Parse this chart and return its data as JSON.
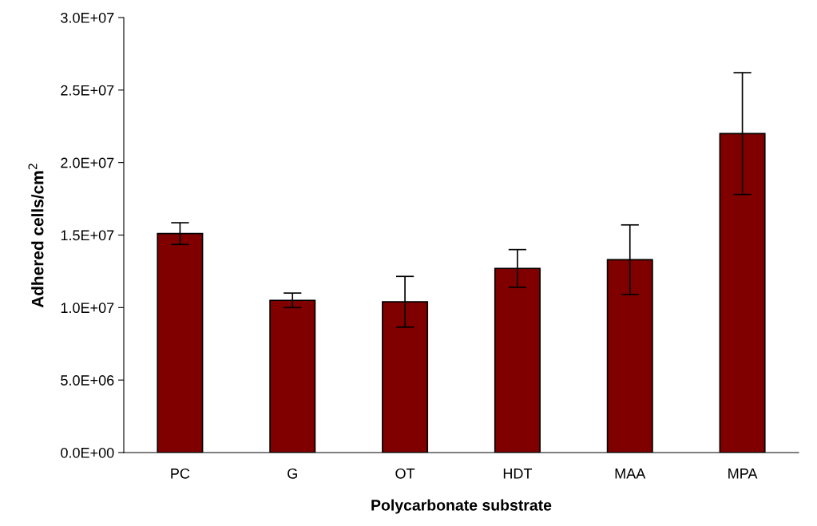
{
  "chart_data": {
    "type": "bar",
    "xlabel": "Polycarbonate substrate",
    "ylabel": "Adhered cells/cm$^{2}$",
    "categories": [
      "PC",
      "G",
      "OT",
      "HDT",
      "MAA",
      "MPA"
    ],
    "values": [
      15100000,
      10500000,
      10400000,
      12700000,
      13300000,
      22000000
    ],
    "errors": [
      750000,
      500000,
      1750000,
      1300000,
      2400000,
      4200000
    ],
    "color": "#800000",
    "ylim": [
      0,
      30000000
    ],
    "yticks": [
      {
        "value": 0,
        "label": "0.0E+00"
      },
      {
        "value": 5000000,
        "label": "5.0E+06"
      },
      {
        "value": 10000000,
        "label": "1.0E+07"
      },
      {
        "value": 15000000,
        "label": "1.5E+07"
      },
      {
        "value": 20000000,
        "label": "2.0E+07"
      },
      {
        "value": 25000000,
        "label": "2.5E+07"
      },
      {
        "value": 30000000,
        "label": "3.0E+07"
      }
    ],
    "grid": false,
    "legend": false
  }
}
